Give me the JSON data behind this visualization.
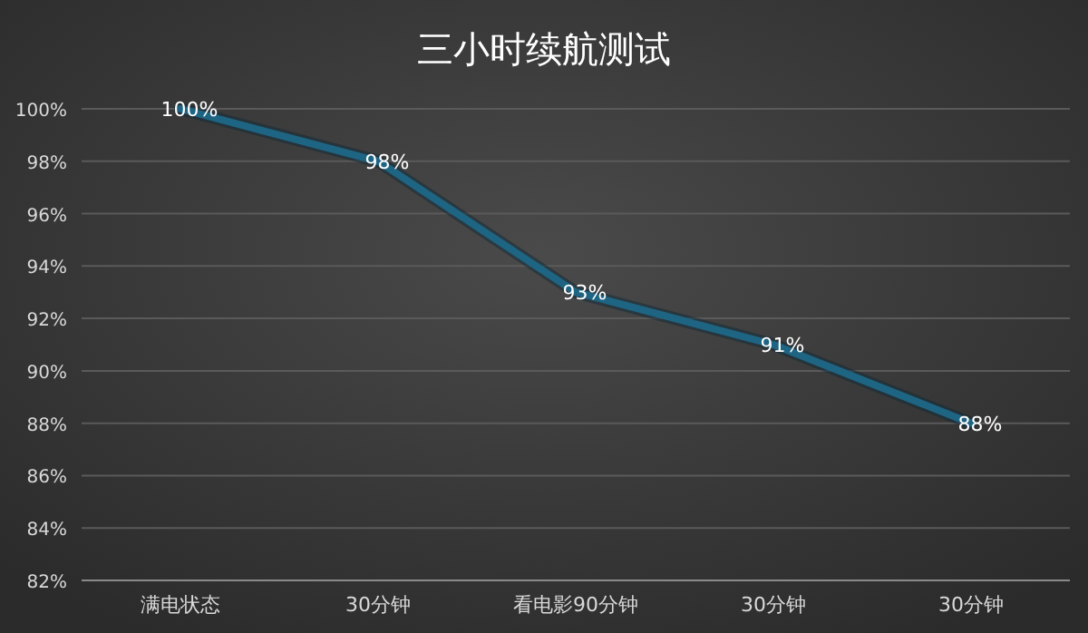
{
  "chart_data": {
    "type": "line",
    "title": "三小时续航测试",
    "categories": [
      "满电状态",
      "30分钟",
      "看电影90分钟",
      "30分钟",
      "30分钟"
    ],
    "series": [
      {
        "color": "#1e6584",
        "values": [
          100,
          98,
          93,
          91,
          88
        ],
        "value_labels": [
          "100%",
          "98%",
          "93%",
          "91%",
          "88%"
        ]
      }
    ],
    "ylim": [
      82,
      100
    ],
    "yticks": [
      {
        "value": 82,
        "label": "82%"
      },
      {
        "value": 84,
        "label": "84%"
      },
      {
        "value": 86,
        "label": "86%"
      },
      {
        "value": 88,
        "label": "88%"
      },
      {
        "value": 90,
        "label": "90%"
      },
      {
        "value": 92,
        "label": "92%"
      },
      {
        "value": 94,
        "label": "94%"
      },
      {
        "value": 96,
        "label": "96%"
      },
      {
        "value": 98,
        "label": "98%"
      },
      {
        "value": 100,
        "label": "100%"
      }
    ],
    "grid": "y",
    "marker": "none",
    "line_style": "solid"
  }
}
